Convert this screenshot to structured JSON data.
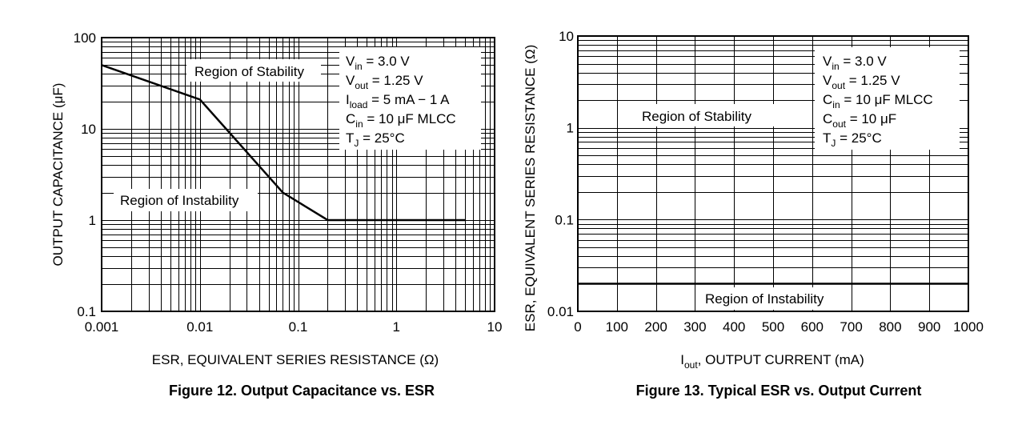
{
  "chart_data": [
    {
      "type": "line",
      "x_scale": "log",
      "y_scale": "log",
      "xlim": [
        0.001,
        10
      ],
      "ylim": [
        0.1,
        100
      ],
      "x_ticks": [
        "0.001",
        "0.01",
        "0.1",
        "1",
        "10"
      ],
      "y_ticks": [
        "0.1",
        "1",
        "10",
        "100"
      ],
      "xlabel": "ESR, EQUIVALENT SERIES RESISTANCE (Ω)",
      "ylabel": "OUTPUT CAPACITANCE (μF)",
      "grid": true,
      "caption": "Figure 12. Output Capacitance vs. ESR",
      "series": [
        {
          "x": [
            0.001,
            0.01,
            0.07,
            0.2,
            5.0
          ],
          "y": [
            50,
            21,
            2,
            1,
            1
          ]
        }
      ],
      "region_upper": "Region of Stability",
      "region_lower": "Region of Instability",
      "conditions": [
        {
          "main": "V",
          "sub": "in",
          "rest": " = 3.0 V"
        },
        {
          "main": "V",
          "sub": "out",
          "rest": " = 1.25 V"
        },
        {
          "main": "I",
          "sub": "load",
          "rest": " = 5 mA − 1 A"
        },
        {
          "main": "C",
          "sub": "in",
          "rest": " = 10 μF MLCC"
        },
        {
          "main": "T",
          "sub": "J",
          "rest": " = 25°C"
        }
      ]
    },
    {
      "type": "line",
      "x_scale": "linear",
      "y_scale": "log",
      "xlim": [
        0,
        1000
      ],
      "ylim": [
        0.01,
        10
      ],
      "x_ticks": [
        "0",
        "100",
        "200",
        "300",
        "400",
        "500",
        "600",
        "700",
        "800",
        "900",
        "1000"
      ],
      "y_ticks": [
        "0.01",
        "0.1",
        "1",
        "10"
      ],
      "xlabel_main": "I",
      "xlabel_sub": "out",
      "xlabel_rest": ", OUTPUT CURRENT (mA)",
      "ylabel": "ESR, EQUIVALENT SERIES RESISTANCE (Ω)",
      "grid": true,
      "caption": "Figure 13. Typical ESR vs. Output Current",
      "series": [
        {
          "x": [
            0,
            1000
          ],
          "y": [
            0.02,
            0.02
          ]
        }
      ],
      "region_upper": "Region of Stability",
      "region_lower": "Region of Instability",
      "conditions": [
        {
          "main": "V",
          "sub": "in",
          "rest": " = 3.0 V"
        },
        {
          "main": "V",
          "sub": "out",
          "rest": " = 1.25 V"
        },
        {
          "main": "C",
          "sub": "in",
          "rest": " = 10 μF MLCC"
        },
        {
          "main": "C",
          "sub": "out",
          "rest": " = 10 μF"
        },
        {
          "main": "T",
          "sub": "J",
          "rest": " = 25°C"
        }
      ]
    }
  ]
}
